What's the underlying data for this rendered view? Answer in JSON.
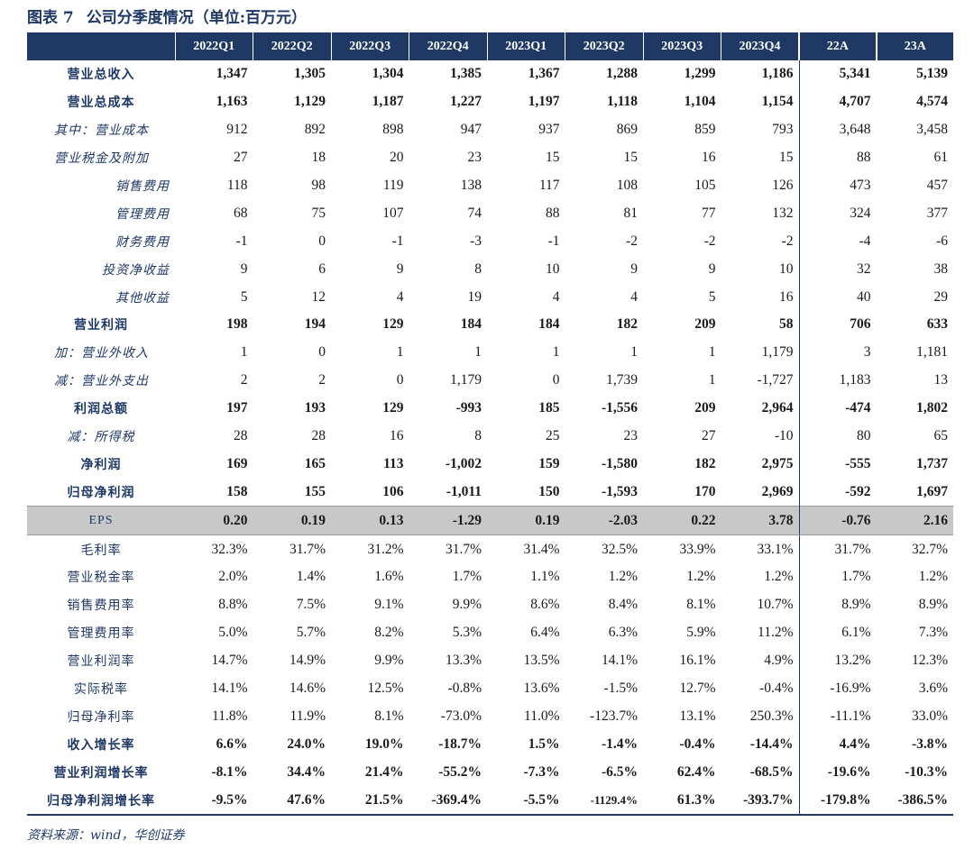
{
  "title": {
    "figure": "图表 7",
    "text": "公司分季度情况（单位:百万元）"
  },
  "columns": [
    "",
    "2022Q1",
    "2022Q2",
    "2022Q3",
    "2022Q4",
    "2023Q1",
    "2023Q2",
    "2023Q3",
    "2023Q4",
    "22A",
    "23A"
  ],
  "rows": [
    {
      "label": "营业总收入",
      "style": "bold",
      "align": "center",
      "values": [
        "1,347",
        "1,305",
        "1,304",
        "1,385",
        "1,367",
        "1,288",
        "1,299",
        "1,186",
        "5,341",
        "5,139"
      ]
    },
    {
      "label": "营业总成本",
      "style": "bold",
      "align": "center",
      "values": [
        "1,163",
        "1,129",
        "1,187",
        "1,227",
        "1,197",
        "1,118",
        "1,104",
        "1,154",
        "4,707",
        "4,574"
      ]
    },
    {
      "label": "其中：营业成本",
      "style": "italic",
      "align": "left",
      "values": [
        "912",
        "892",
        "898",
        "947",
        "937",
        "869",
        "859",
        "793",
        "3,648",
        "3,458"
      ]
    },
    {
      "label": "营业税金及附加",
      "style": "italic",
      "align": "left",
      "values": [
        "27",
        "18",
        "20",
        "23",
        "15",
        "15",
        "16",
        "15",
        "88",
        "61"
      ]
    },
    {
      "label": "销售费用",
      "style": "italic",
      "align": "right",
      "values": [
        "118",
        "98",
        "119",
        "138",
        "117",
        "108",
        "105",
        "126",
        "473",
        "457"
      ]
    },
    {
      "label": "管理费用",
      "style": "italic",
      "align": "right",
      "values": [
        "68",
        "75",
        "107",
        "74",
        "88",
        "81",
        "77",
        "132",
        "324",
        "377"
      ]
    },
    {
      "label": "财务费用",
      "style": "italic",
      "align": "right",
      "values": [
        "-1",
        "0",
        "-1",
        "-3",
        "-1",
        "-2",
        "-2",
        "-2",
        "-4",
        "-6"
      ]
    },
    {
      "label": "投资净收益",
      "style": "italic",
      "align": "right",
      "values": [
        "9",
        "6",
        "9",
        "8",
        "10",
        "9",
        "9",
        "10",
        "32",
        "38"
      ]
    },
    {
      "label": "其他收益",
      "style": "italic",
      "align": "right",
      "values": [
        "5",
        "12",
        "4",
        "19",
        "4",
        "4",
        "5",
        "16",
        "40",
        "29"
      ]
    },
    {
      "label": "营业利润",
      "style": "bold",
      "align": "center",
      "values": [
        "198",
        "194",
        "129",
        "184",
        "184",
        "182",
        "209",
        "58",
        "706",
        "633"
      ]
    },
    {
      "label": "加：营业外收入",
      "style": "italic",
      "align": "left",
      "values": [
        "1",
        "0",
        "1",
        "1",
        "1",
        "1",
        "1",
        "1,179",
        "3",
        "1,181"
      ]
    },
    {
      "label": "减：营业外支出",
      "style": "italic",
      "align": "left",
      "values": [
        "2",
        "2",
        "0",
        "1,179",
        "0",
        "1,739",
        "1",
        "-1,727",
        "1,183",
        "13"
      ]
    },
    {
      "label": "利润总额",
      "style": "bold",
      "align": "center",
      "values": [
        "197",
        "193",
        "129",
        "-993",
        "185",
        "-1,556",
        "209",
        "2,964",
        "-474",
        "1,802"
      ]
    },
    {
      "label": "减：所得税",
      "style": "italic",
      "align": "center",
      "values": [
        "28",
        "28",
        "16",
        "8",
        "25",
        "23",
        "27",
        "-10",
        "80",
        "65"
      ]
    },
    {
      "label": "净利润",
      "style": "bold",
      "align": "center",
      "values": [
        "169",
        "165",
        "113",
        "-1,002",
        "159",
        "-1,580",
        "182",
        "2,975",
        "-555",
        "1,737"
      ]
    },
    {
      "label": "归母净利润",
      "style": "bold",
      "align": "center",
      "values": [
        "158",
        "155",
        "106",
        "-1,011",
        "150",
        "-1,593",
        "170",
        "2,969",
        "-592",
        "1,697"
      ]
    },
    {
      "label": "EPS",
      "style": "eps",
      "align": "center",
      "values": [
        "0.20",
        "0.19",
        "0.13",
        "-1.29",
        "0.19",
        "-2.03",
        "0.22",
        "3.78",
        "-0.76",
        "2.16"
      ]
    },
    {
      "label": "毛利率",
      "style": "plain",
      "align": "center",
      "values": [
        "32.3%",
        "31.7%",
        "31.2%",
        "31.7%",
        "31.4%",
        "32.5%",
        "33.9%",
        "33.1%",
        "31.7%",
        "32.7%"
      ]
    },
    {
      "label": "营业税金率",
      "style": "plain",
      "align": "center",
      "values": [
        "2.0%",
        "1.4%",
        "1.6%",
        "1.7%",
        "1.1%",
        "1.2%",
        "1.2%",
        "1.2%",
        "1.7%",
        "1.2%"
      ]
    },
    {
      "label": "销售费用率",
      "style": "plain",
      "align": "center",
      "values": [
        "8.8%",
        "7.5%",
        "9.1%",
        "9.9%",
        "8.6%",
        "8.4%",
        "8.1%",
        "10.7%",
        "8.9%",
        "8.9%"
      ]
    },
    {
      "label": "管理费用率",
      "style": "plain",
      "align": "center",
      "values": [
        "5.0%",
        "5.7%",
        "8.2%",
        "5.3%",
        "6.4%",
        "6.3%",
        "5.9%",
        "11.2%",
        "6.1%",
        "7.3%"
      ]
    },
    {
      "label": "营业利润率",
      "style": "plain",
      "align": "center",
      "values": [
        "14.7%",
        "14.9%",
        "9.9%",
        "13.3%",
        "13.5%",
        "14.1%",
        "16.1%",
        "4.9%",
        "13.2%",
        "12.3%"
      ]
    },
    {
      "label": "实际税率",
      "style": "plain",
      "align": "center",
      "values": [
        "14.1%",
        "14.6%",
        "12.5%",
        "-0.8%",
        "13.6%",
        "-1.5%",
        "12.7%",
        "-0.4%",
        "-16.9%",
        "3.6%"
      ]
    },
    {
      "label": "归母净利率",
      "style": "plain",
      "align": "center",
      "values": [
        "11.8%",
        "11.9%",
        "8.1%",
        "-73.0%",
        "11.0%",
        "-123.7%",
        "13.1%",
        "250.3%",
        "-11.1%",
        "33.0%"
      ]
    },
    {
      "label": "收入增长率",
      "style": "bold",
      "align": "center",
      "values": [
        "6.6%",
        "24.0%",
        "19.0%",
        "-18.7%",
        "1.5%",
        "-1.4%",
        "-0.4%",
        "-14.4%",
        "4.4%",
        "-3.8%"
      ]
    },
    {
      "label": "营业利润增长率",
      "style": "bold",
      "align": "center",
      "values": [
        "-8.1%",
        "34.4%",
        "21.4%",
        "-55.2%",
        "-7.3%",
        "-6.5%",
        "62.4%",
        "-68.5%",
        "-19.6%",
        "-10.3%"
      ]
    },
    {
      "label": "归母净利润增长率",
      "style": "bold",
      "align": "center",
      "values": [
        "-9.5%",
        "47.6%",
        "21.5%",
        "-369.4%",
        "-5.5%",
        "-1129.4%",
        "61.3%",
        "-393.7%",
        "-179.8%",
        "-386.5%"
      ]
    }
  ],
  "source": "资料来源：wind，华创证券"
}
